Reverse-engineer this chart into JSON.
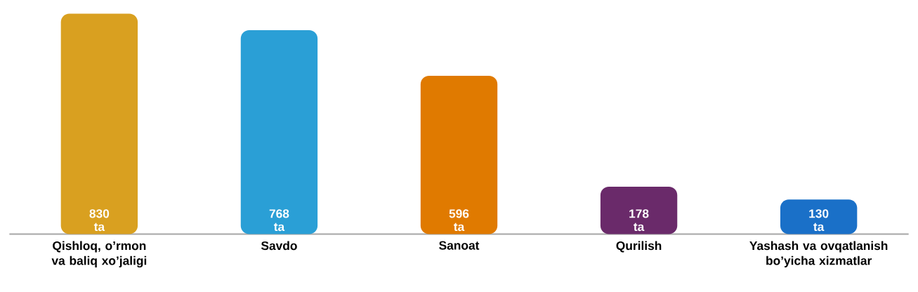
{
  "chart_data": {
    "type": "bar",
    "categories": [
      "Qishloq, o’rmon va baliq xo’jaligi",
      "Savdo",
      "Sanoat",
      "Qurilish",
      "Yashash va ovqatlanish bo’yicha xizmatlar"
    ],
    "values": [
      830,
      768,
      596,
      178,
      130
    ],
    "colors": [
      "#d9a020",
      "#2a9fd6",
      "#e07a00",
      "#6a2a6a",
      "#1a70c8"
    ],
    "value_labels": [
      "830 ta",
      "768 ta",
      "596 ta",
      "178 ta",
      "130 ta"
    ]
  }
}
